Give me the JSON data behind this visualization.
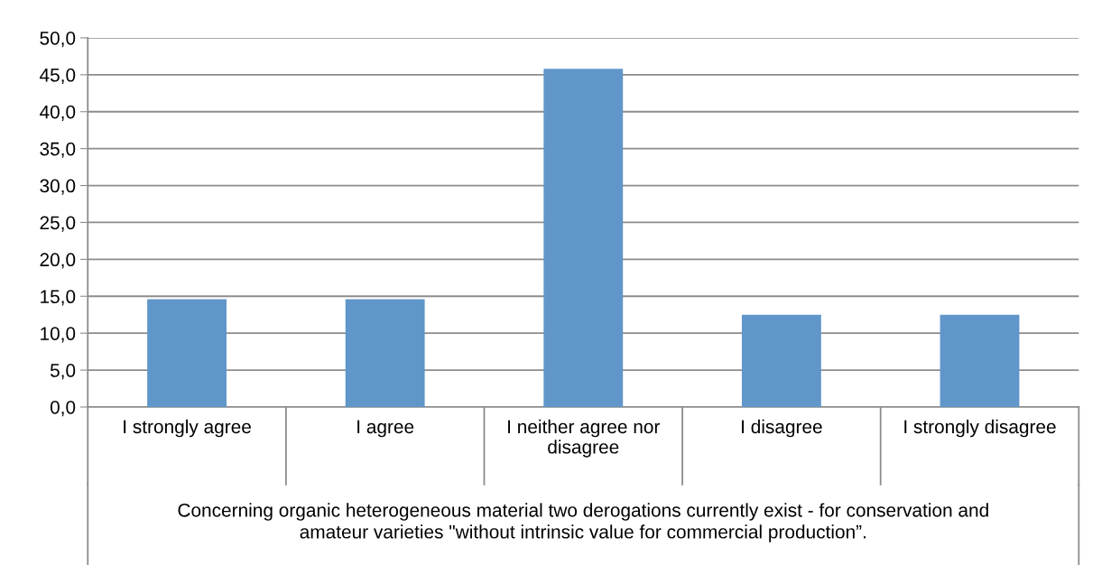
{
  "chart_data": {
    "type": "bar",
    "xlabel": "Concerning organic heterogeneous material two derogations currently exist - for conservation and\namateur varieties \"without intrinsic value for commercial production”.",
    "categories": [
      "I strongly agree",
      "I agree",
      "I neither agree nor\ndisagree",
      "I disagree",
      "I strongly disagree"
    ],
    "values": [
      14.6,
      14.6,
      45.8,
      12.5,
      12.5
    ],
    "color": "#6096c9",
    "ylim": [
      0,
      50
    ],
    "yticks": [
      {
        "value": 0,
        "label": "0,0"
      },
      {
        "value": 5,
        "label": "5,0"
      },
      {
        "value": 10,
        "label": "10,0"
      },
      {
        "value": 15,
        "label": "15,0"
      },
      {
        "value": 20,
        "label": "20,0"
      },
      {
        "value": 25,
        "label": "25,0"
      },
      {
        "value": 30,
        "label": "30,0"
      },
      {
        "value": 35,
        "label": "35,0"
      },
      {
        "value": 40,
        "label": "40,0"
      },
      {
        "value": 45,
        "label": "45,0"
      },
      {
        "value": 50,
        "label": "50,0"
      }
    ],
    "grid": "y"
  }
}
